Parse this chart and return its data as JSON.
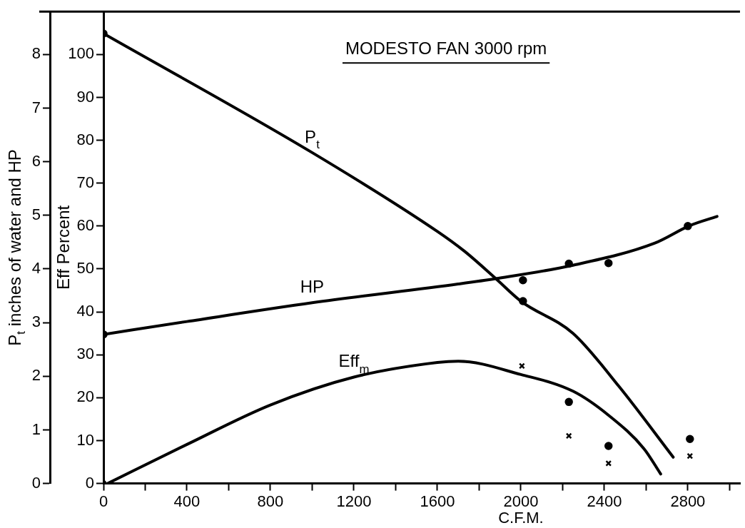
{
  "chart_data": {
    "type": "line",
    "title": "MODESTO FAN 3000 rpm",
    "xlabel": "C.F.M.",
    "ylabel": "P$_{t}$ inches of water and HP",
    "y2label": "Eff Percent",
    "xlim": [
      0,
      3050
    ],
    "xticks": [
      0,
      {
        "value": 200,
        "label": null
      },
      400,
      {
        "value": 600,
        "label": null
      },
      800,
      {
        "value": 1000,
        "label": null
      },
      1200,
      {
        "value": 1400,
        "label": null
      },
      1600,
      {
        "value": 1800,
        "label": null
      },
      2000,
      {
        "value": 2200,
        "label": null
      },
      2400,
      {
        "value": 2600,
        "label": null
      },
      2800,
      {
        "value": 3000,
        "label": null
      }
    ],
    "ylim": [
      0,
      8.8
    ],
    "yticks": [
      0,
      1,
      2,
      3,
      4,
      5,
      6,
      7,
      8
    ],
    "y2lim": [
      0,
      110
    ],
    "y2ticks": [
      0,
      10,
      20,
      30,
      40,
      50,
      60,
      70,
      80,
      90,
      100
    ],
    "grid": false,
    "legend": false,
    "line_style": "solid",
    "series": [
      {
        "name": "P$_{t}$",
        "color": "#000000",
        "marker": "none",
        "x": [
          0,
          1000,
          1600,
          1730,
          1880,
          2000,
          2250,
          2470,
          2730
        ],
        "values": [
          8.39,
          6.17,
          4.7,
          4.33,
          3.82,
          3.4,
          2.8,
          1.81,
          0.49
        ]
      },
      {
        "name": "HP",
        "color": "#000000",
        "marker": "none",
        "x": [
          0,
          400,
          1000,
          1700,
          1880,
          2250,
          2640,
          2810,
          2940
        ],
        "values": [
          2.78,
          3.02,
          3.37,
          3.72,
          3.82,
          4.07,
          4.48,
          4.81,
          4.98
        ]
      },
      {
        "name": "Eff$_{m}$",
        "axis": "y2",
        "color": "#000000",
        "marker": "none",
        "x": [
          20,
          400,
          800,
          1200,
          1600,
          1700,
          2000,
          2250,
          2420,
          2590,
          2670
        ],
        "values": [
          0,
          9.1,
          18.3,
          24.8,
          28.2,
          28.5,
          25.4,
          21.5,
          15.9,
          8.1,
          2.2
        ]
      },
      {
        "type": "scatter",
        "color": "#000000",
        "marker": "circle",
        "x": [
          0,
          2010,
          2230,
          2420,
          2810
        ],
        "values": [
          8.39,
          3.4,
          1.52,
          0.7,
          0.83
        ]
      },
      {
        "type": "scatter",
        "color": "#000000",
        "marker": "circle",
        "x": [
          0,
          2010,
          2230,
          2420,
          2800
        ],
        "values": [
          2.78,
          3.79,
          4.1,
          4.11,
          4.8
        ]
      },
      {
        "type": "scatter",
        "axis": "y2",
        "color": "#000000",
        "marker": "cross",
        "x": [
          0,
          2005,
          2230,
          2420,
          2810
        ],
        "values": [
          0,
          27.4,
          11.1,
          4.7,
          6.4
        ]
      }
    ]
  }
}
